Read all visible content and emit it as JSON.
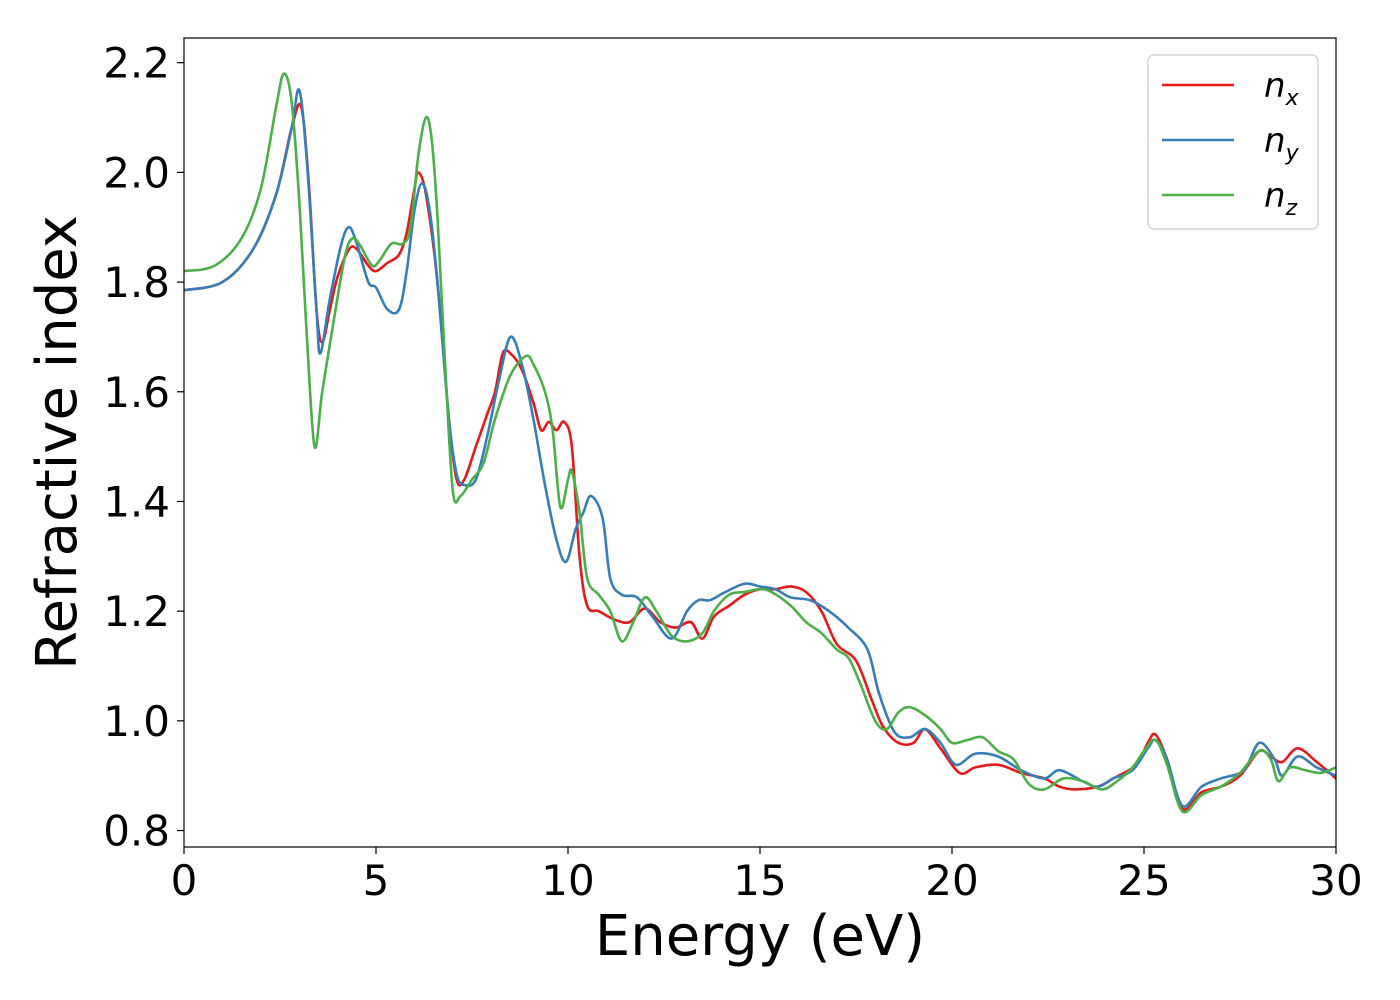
{
  "chart_data": {
    "type": "line",
    "title": "",
    "xlabel": "Energy (eV)",
    "ylabel": "Refractive index",
    "xlim": [
      0,
      30
    ],
    "ylim": [
      0.77,
      2.245
    ],
    "xticks": [
      0,
      5,
      10,
      15,
      20,
      25,
      30
    ],
    "xtick_labels": [
      "0",
      "5",
      "10",
      "15",
      "20",
      "25",
      "30"
    ],
    "yticks": [
      0.8,
      1.0,
      1.2,
      1.4,
      1.6,
      1.8,
      2.0,
      2.2
    ],
    "ytick_labels": [
      "0.8",
      "1.0",
      "1.2",
      "1.4",
      "1.6",
      "1.8",
      "2.0",
      "2.2"
    ],
    "grid": false,
    "legend_position": "top-right",
    "series": [
      {
        "name": "n",
        "subscript": "x",
        "color": "#e41a1c",
        "points": [
          [
            0,
            1.785
          ],
          [
            1,
            1.8
          ],
          [
            1.8,
            1.86
          ],
          [
            2.4,
            1.96
          ],
          [
            2.8,
            2.08
          ],
          [
            3.05,
            2.12
          ],
          [
            3.25,
            1.98
          ],
          [
            3.45,
            1.75
          ],
          [
            3.6,
            1.69
          ],
          [
            3.8,
            1.75
          ],
          [
            4.0,
            1.81
          ],
          [
            4.3,
            1.86
          ],
          [
            4.5,
            1.86
          ],
          [
            4.8,
            1.83
          ],
          [
            5.0,
            1.82
          ],
          [
            5.3,
            1.835
          ],
          [
            5.6,
            1.85
          ],
          [
            5.8,
            1.89
          ],
          [
            6.0,
            1.97
          ],
          [
            6.1,
            2.0
          ],
          [
            6.3,
            1.96
          ],
          [
            6.6,
            1.8
          ],
          [
            6.9,
            1.55
          ],
          [
            7.1,
            1.44
          ],
          [
            7.3,
            1.44
          ],
          [
            7.6,
            1.5
          ],
          [
            7.9,
            1.56
          ],
          [
            8.1,
            1.6
          ],
          [
            8.3,
            1.67
          ],
          [
            8.5,
            1.67
          ],
          [
            8.8,
            1.64
          ],
          [
            9.1,
            1.58
          ],
          [
            9.3,
            1.53
          ],
          [
            9.5,
            1.545
          ],
          [
            9.7,
            1.53
          ],
          [
            9.9,
            1.545
          ],
          [
            10.1,
            1.5
          ],
          [
            10.3,
            1.3
          ],
          [
            10.5,
            1.21
          ],
          [
            10.8,
            1.2
          ],
          [
            11.2,
            1.185
          ],
          [
            11.6,
            1.18
          ],
          [
            12.0,
            1.205
          ],
          [
            12.4,
            1.18
          ],
          [
            12.8,
            1.17
          ],
          [
            13.2,
            1.18
          ],
          [
            13.5,
            1.15
          ],
          [
            13.8,
            1.19
          ],
          [
            14.2,
            1.21
          ],
          [
            14.6,
            1.23
          ],
          [
            15.0,
            1.24
          ],
          [
            15.4,
            1.24
          ],
          [
            15.8,
            1.245
          ],
          [
            16.2,
            1.235
          ],
          [
            16.6,
            1.2
          ],
          [
            17.0,
            1.14
          ],
          [
            17.5,
            1.11
          ],
          [
            17.9,
            1.04
          ],
          [
            18.2,
            0.99
          ],
          [
            18.6,
            0.96
          ],
          [
            19.0,
            0.96
          ],
          [
            19.3,
            0.985
          ],
          [
            19.7,
            0.95
          ],
          [
            20.2,
            0.905
          ],
          [
            20.6,
            0.915
          ],
          [
            21.2,
            0.92
          ],
          [
            21.8,
            0.905
          ],
          [
            22.4,
            0.895
          ],
          [
            22.8,
            0.88
          ],
          [
            23.2,
            0.875
          ],
          [
            23.8,
            0.88
          ],
          [
            24.2,
            0.895
          ],
          [
            24.8,
            0.92
          ],
          [
            25.1,
            0.96
          ],
          [
            25.3,
            0.975
          ],
          [
            25.6,
            0.93
          ],
          [
            26.0,
            0.84
          ],
          [
            26.5,
            0.87
          ],
          [
            27.0,
            0.88
          ],
          [
            27.5,
            0.9
          ],
          [
            28.0,
            0.945
          ],
          [
            28.3,
            0.935
          ],
          [
            28.6,
            0.925
          ],
          [
            29.0,
            0.95
          ],
          [
            29.5,
            0.925
          ],
          [
            30,
            0.895
          ]
        ]
      },
      {
        "name": "n",
        "subscript": "y",
        "color": "#377eb8",
        "points": [
          [
            0,
            1.785
          ],
          [
            1,
            1.8
          ],
          [
            1.8,
            1.86
          ],
          [
            2.4,
            1.96
          ],
          [
            2.8,
            2.08
          ],
          [
            3.0,
            2.15
          ],
          [
            3.2,
            2.02
          ],
          [
            3.45,
            1.75
          ],
          [
            3.55,
            1.67
          ],
          [
            3.8,
            1.77
          ],
          [
            4.1,
            1.87
          ],
          [
            4.3,
            1.9
          ],
          [
            4.5,
            1.87
          ],
          [
            4.8,
            1.8
          ],
          [
            5.0,
            1.79
          ],
          [
            5.3,
            1.75
          ],
          [
            5.6,
            1.75
          ],
          [
            5.8,
            1.82
          ],
          [
            6.0,
            1.93
          ],
          [
            6.2,
            1.98
          ],
          [
            6.4,
            1.93
          ],
          [
            6.6,
            1.8
          ],
          [
            6.9,
            1.55
          ],
          [
            7.1,
            1.45
          ],
          [
            7.3,
            1.43
          ],
          [
            7.6,
            1.44
          ],
          [
            7.9,
            1.52
          ],
          [
            8.2,
            1.62
          ],
          [
            8.5,
            1.7
          ],
          [
            8.8,
            1.65
          ],
          [
            9.1,
            1.55
          ],
          [
            9.4,
            1.43
          ],
          [
            9.7,
            1.33
          ],
          [
            9.95,
            1.29
          ],
          [
            10.2,
            1.35
          ],
          [
            10.4,
            1.38
          ],
          [
            10.6,
            1.41
          ],
          [
            10.9,
            1.37
          ],
          [
            11.1,
            1.26
          ],
          [
            11.4,
            1.23
          ],
          [
            11.8,
            1.225
          ],
          [
            12.2,
            1.19
          ],
          [
            12.7,
            1.15
          ],
          [
            13.1,
            1.2
          ],
          [
            13.4,
            1.22
          ],
          [
            13.7,
            1.22
          ],
          [
            14.1,
            1.235
          ],
          [
            14.6,
            1.25
          ],
          [
            15.0,
            1.245
          ],
          [
            15.4,
            1.24
          ],
          [
            15.8,
            1.225
          ],
          [
            16.3,
            1.22
          ],
          [
            16.8,
            1.2
          ],
          [
            17.3,
            1.17
          ],
          [
            17.8,
            1.13
          ],
          [
            18.1,
            1.05
          ],
          [
            18.5,
            0.98
          ],
          [
            18.9,
            0.97
          ],
          [
            19.3,
            0.985
          ],
          [
            19.7,
            0.96
          ],
          [
            20.1,
            0.92
          ],
          [
            20.6,
            0.94
          ],
          [
            21.2,
            0.935
          ],
          [
            21.8,
            0.91
          ],
          [
            22.4,
            0.895
          ],
          [
            22.8,
            0.91
          ],
          [
            23.4,
            0.89
          ],
          [
            23.8,
            0.88
          ],
          [
            24.2,
            0.895
          ],
          [
            24.7,
            0.91
          ],
          [
            25.1,
            0.95
          ],
          [
            25.3,
            0.965
          ],
          [
            25.6,
            0.93
          ],
          [
            26.0,
            0.845
          ],
          [
            26.5,
            0.88
          ],
          [
            27.0,
            0.895
          ],
          [
            27.6,
            0.91
          ],
          [
            28.0,
            0.96
          ],
          [
            28.4,
            0.93
          ],
          [
            28.6,
            0.9
          ],
          [
            29.0,
            0.935
          ],
          [
            29.5,
            0.915
          ],
          [
            30,
            0.9
          ]
        ]
      },
      {
        "name": "n",
        "subscript": "z",
        "color": "#4daf4a",
        "points": [
          [
            0,
            1.82
          ],
          [
            0.8,
            1.83
          ],
          [
            1.5,
            1.88
          ],
          [
            2.0,
            1.97
          ],
          [
            2.4,
            2.12
          ],
          [
            2.6,
            2.18
          ],
          [
            2.8,
            2.13
          ],
          [
            3.0,
            1.95
          ],
          [
            3.2,
            1.7
          ],
          [
            3.4,
            1.5
          ],
          [
            3.6,
            1.6
          ],
          [
            3.9,
            1.73
          ],
          [
            4.2,
            1.85
          ],
          [
            4.4,
            1.88
          ],
          [
            4.6,
            1.865
          ],
          [
            4.9,
            1.83
          ],
          [
            5.1,
            1.84
          ],
          [
            5.4,
            1.87
          ],
          [
            5.7,
            1.87
          ],
          [
            5.9,
            1.9
          ],
          [
            6.1,
            2.03
          ],
          [
            6.3,
            2.1
          ],
          [
            6.45,
            2.06
          ],
          [
            6.6,
            1.92
          ],
          [
            6.8,
            1.65
          ],
          [
            7.0,
            1.42
          ],
          [
            7.2,
            1.41
          ],
          [
            7.5,
            1.44
          ],
          [
            7.8,
            1.47
          ],
          [
            8.1,
            1.55
          ],
          [
            8.5,
            1.63
          ],
          [
            8.9,
            1.665
          ],
          [
            9.1,
            1.65
          ],
          [
            9.4,
            1.6
          ],
          [
            9.6,
            1.53
          ],
          [
            9.8,
            1.39
          ],
          [
            10.0,
            1.44
          ],
          [
            10.1,
            1.455
          ],
          [
            10.3,
            1.38
          ],
          [
            10.5,
            1.26
          ],
          [
            10.8,
            1.23
          ],
          [
            11.1,
            1.2
          ],
          [
            11.4,
            1.145
          ],
          [
            11.7,
            1.18
          ],
          [
            12.0,
            1.225
          ],
          [
            12.3,
            1.2
          ],
          [
            12.7,
            1.155
          ],
          [
            13.1,
            1.145
          ],
          [
            13.5,
            1.16
          ],
          [
            13.8,
            1.2
          ],
          [
            14.2,
            1.23
          ],
          [
            14.6,
            1.235
          ],
          [
            15.0,
            1.24
          ],
          [
            15.3,
            1.235
          ],
          [
            15.8,
            1.21
          ],
          [
            16.2,
            1.18
          ],
          [
            16.6,
            1.16
          ],
          [
            17.0,
            1.13
          ],
          [
            17.3,
            1.115
          ],
          [
            17.6,
            1.07
          ],
          [
            18.0,
            1.0
          ],
          [
            18.3,
            0.985
          ],
          [
            18.6,
            1.015
          ],
          [
            18.9,
            1.025
          ],
          [
            19.3,
            1.01
          ],
          [
            19.7,
            0.985
          ],
          [
            20.0,
            0.96
          ],
          [
            20.4,
            0.965
          ],
          [
            20.8,
            0.97
          ],
          [
            21.2,
            0.945
          ],
          [
            21.6,
            0.93
          ],
          [
            22.0,
            0.885
          ],
          [
            22.4,
            0.875
          ],
          [
            22.9,
            0.895
          ],
          [
            23.4,
            0.89
          ],
          [
            23.9,
            0.875
          ],
          [
            24.3,
            0.89
          ],
          [
            24.7,
            0.915
          ],
          [
            25.0,
            0.945
          ],
          [
            25.3,
            0.965
          ],
          [
            25.6,
            0.92
          ],
          [
            26.0,
            0.835
          ],
          [
            26.5,
            0.865
          ],
          [
            27.0,
            0.88
          ],
          [
            27.5,
            0.905
          ],
          [
            28.0,
            0.945
          ],
          [
            28.3,
            0.93
          ],
          [
            28.5,
            0.89
          ],
          [
            28.8,
            0.915
          ],
          [
            29.2,
            0.91
          ],
          [
            29.6,
            0.905
          ],
          [
            30,
            0.915
          ]
        ]
      }
    ]
  }
}
